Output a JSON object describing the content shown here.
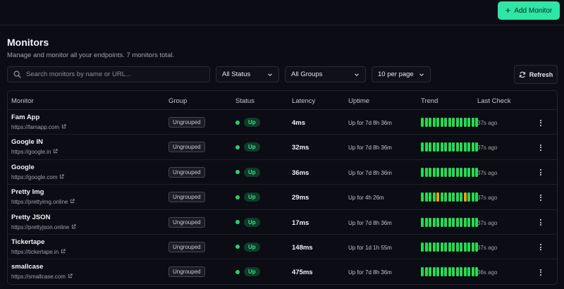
{
  "toolbar": {
    "add_label": "Add Monitor",
    "add_icon": "plus-icon"
  },
  "header": {
    "title": "Monitors",
    "subtitle": "Manage and monitor all your endpoints. 7 monitors total."
  },
  "filters": {
    "search_placeholder": "Search monitors by name or URL...",
    "status": "All Status",
    "groups": "All Groups",
    "per_page": "10 per page",
    "refresh_label": "Refresh"
  },
  "table": {
    "columns": {
      "monitor": "Monitor",
      "group": "Group",
      "status": "Status",
      "latency": "Latency",
      "uptime": "Uptime",
      "trend": "Trend",
      "last_check": "Last Check"
    },
    "rows": [
      {
        "name": "Fam App",
        "url": "https://famapp.com",
        "group": "Ungrouped",
        "status": "Up",
        "latency": "4ms",
        "uptime": "Up for 7d 8h 36m",
        "last_check": "37s ago",
        "trend": [
          "up",
          "up",
          "up",
          "up",
          "up",
          "up",
          "up",
          "up",
          "up",
          "up",
          "up",
          "up",
          "up",
          "up",
          "up"
        ]
      },
      {
        "name": "Google IN",
        "url": "https://google.in",
        "group": "Ungrouped",
        "status": "Up",
        "latency": "32ms",
        "uptime": "Up for 7d 8h 36m",
        "last_check": "37s ago",
        "trend": [
          "up",
          "up",
          "up",
          "up",
          "up",
          "up",
          "up",
          "up",
          "up",
          "up",
          "up",
          "up",
          "up",
          "up",
          "up"
        ]
      },
      {
        "name": "Google",
        "url": "https://google.com",
        "group": "Ungrouped",
        "status": "Up",
        "latency": "36ms",
        "uptime": "Up for 7d 8h 36m",
        "last_check": "37s ago",
        "trend": [
          "up",
          "up",
          "up",
          "up",
          "up",
          "up",
          "up",
          "up",
          "up",
          "up",
          "up",
          "up",
          "up",
          "up",
          "up"
        ]
      },
      {
        "name": "Pretty Img",
        "url": "https://prettyimg.online",
        "group": "Ungrouped",
        "status": "Up",
        "latency": "29ms",
        "uptime": "Up for 4h 26m",
        "last_check": "37s ago",
        "trend": [
          "up",
          "up",
          "up",
          "up",
          "slow",
          "up",
          "up",
          "up",
          "up",
          "up",
          "up",
          "slow",
          "up",
          "up",
          "up"
        ]
      },
      {
        "name": "Pretty JSON",
        "url": "https://prettyjson.online",
        "group": "Ungrouped",
        "status": "Up",
        "latency": "17ms",
        "uptime": "Up for 7d 8h 36m",
        "last_check": "37s ago",
        "trend": [
          "up",
          "up",
          "up",
          "up",
          "up",
          "up",
          "up",
          "up",
          "up",
          "up",
          "up",
          "up",
          "up",
          "up",
          "up"
        ]
      },
      {
        "name": "Tickertape",
        "url": "https://tickertape.in",
        "group": "Ungrouped",
        "status": "Up",
        "latency": "148ms",
        "uptime": "Up for 1d 1h 55m",
        "last_check": "37s ago",
        "trend": [
          "up",
          "up",
          "up",
          "up",
          "up",
          "up",
          "up",
          "up",
          "up",
          "up",
          "up",
          "up",
          "up",
          "up",
          "up"
        ]
      },
      {
        "name": "smallcase",
        "url": "https://smallcase.com",
        "group": "Ungrouped",
        "status": "Up",
        "latency": "475ms",
        "uptime": "Up for 7d 8h 36m",
        "last_check": "36s ago",
        "trend": [
          "up",
          "up",
          "up",
          "up",
          "up",
          "up",
          "up",
          "up",
          "up",
          "up",
          "up",
          "up",
          "up",
          "up",
          "up"
        ]
      }
    ]
  },
  "colors": {
    "accent": "#2ee6a6",
    "trend_up": "#27d94f",
    "trend_slow": "#f29d14",
    "status_up": "#22d36f"
  }
}
